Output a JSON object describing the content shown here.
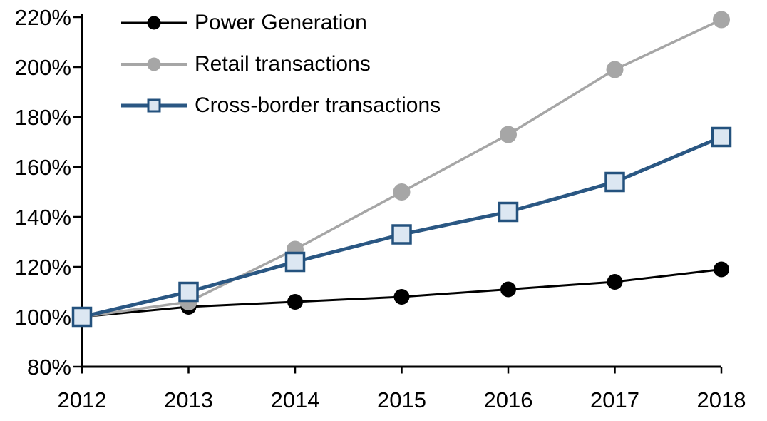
{
  "chart_data": {
    "type": "line",
    "title": "",
    "xlabel": "",
    "ylabel": "",
    "grid": false,
    "legend_position": "top-left",
    "ylim": [
      80,
      220
    ],
    "x_labels": [
      "2012",
      "2013",
      "2014",
      "2015",
      "2016",
      "2017",
      "2018"
    ],
    "y_tick_values": [
      80,
      100,
      120,
      140,
      160,
      180,
      200,
      220
    ],
    "y_tick_labels": [
      "80%",
      "100%",
      "120%",
      "140%",
      "160%",
      "180%",
      "200%",
      "220%"
    ],
    "series": [
      {
        "name": "Power Generation",
        "line_color": "#000000",
        "line_width": 3,
        "marker": "circle",
        "marker_fill": "#000000",
        "marker_border": "#000000",
        "marker_size": 22,
        "values": [
          100,
          104,
          106,
          108,
          111,
          114,
          119
        ]
      },
      {
        "name": "Retail transactions",
        "line_color": "#A6A6A6",
        "line_width": 3.5,
        "marker": "circle",
        "marker_fill": "#A6A6A6",
        "marker_border": "#A6A6A6",
        "marker_size": 24,
        "values": [
          100,
          106,
          127,
          150,
          173,
          199,
          219
        ]
      },
      {
        "name": "Cross-border transactions",
        "line_color": "#2A5783",
        "line_width": 5,
        "marker": "square",
        "marker_fill": "#DCE7F2",
        "marker_border": "#24527E",
        "marker_size": 25,
        "values": [
          100,
          110,
          122,
          133,
          142,
          154,
          172
        ]
      }
    ]
  }
}
